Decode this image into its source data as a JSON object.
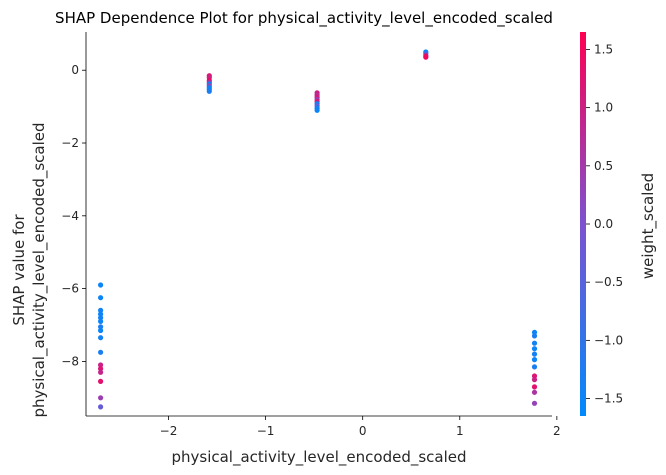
{
  "chart_data": {
    "type": "scatter",
    "title": "SHAP Dependence Plot for physical_activity_level_encoded_scaled",
    "xlabel": "physical_activity_level_encoded_scaled",
    "ylabel_lines": [
      "SHAP value for",
      "physical_activity_level_encoded_scaled"
    ],
    "xlim": [
      -2.85,
      1.95
    ],
    "ylim": [
      -9.5,
      1.05
    ],
    "x_ticks": [
      -2,
      -1,
      0,
      1,
      2
    ],
    "x_tick_labels": [
      "−2",
      "−1",
      "0",
      "1",
      "2"
    ],
    "y_ticks": [
      0,
      -2,
      -4,
      -6,
      -8
    ],
    "y_tick_labels": [
      "0",
      "−2",
      "−4",
      "−6",
      "−8"
    ],
    "colorbar": {
      "label": "weight_scaled",
      "range": [
        -1.65,
        1.65
      ],
      "ticks": [
        1.5,
        1.0,
        0.5,
        0.0,
        -0.5,
        -1.0,
        -1.5
      ],
      "tick_labels": [
        "1.5",
        "1.0",
        "0.5",
        "0.0",
        "−0.5",
        "−1.0",
        "−1.5"
      ],
      "colors": [
        "#008afb",
        "#7c52d0",
        "#ff0052"
      ]
    },
    "points": [
      {
        "x": -2.7,
        "y": -5.9,
        "c": -1.5
      },
      {
        "x": -2.7,
        "y": -6.25,
        "c": -1.5
      },
      {
        "x": -2.7,
        "y": -6.6,
        "c": -1.4
      },
      {
        "x": -2.7,
        "y": -6.7,
        "c": -1.5
      },
      {
        "x": -2.7,
        "y": -6.8,
        "c": -1.4
      },
      {
        "x": -2.7,
        "y": -6.9,
        "c": -1.5
      },
      {
        "x": -2.7,
        "y": -7.05,
        "c": -1.3
      },
      {
        "x": -2.7,
        "y": -7.15,
        "c": -1.5
      },
      {
        "x": -2.7,
        "y": -7.35,
        "c": -1.4
      },
      {
        "x": -2.7,
        "y": -7.75,
        "c": -1.3
      },
      {
        "x": -2.7,
        "y": -8.1,
        "c": 1.0
      },
      {
        "x": -2.7,
        "y": -8.2,
        "c": 1.2
      },
      {
        "x": -2.7,
        "y": -8.3,
        "c": 0.9
      },
      {
        "x": -2.7,
        "y": -8.55,
        "c": 1.3
      },
      {
        "x": -2.7,
        "y": -9.0,
        "c": 0.4
      },
      {
        "x": -2.7,
        "y": -9.25,
        "c": -0.3
      },
      {
        "x": -1.58,
        "y": -0.15,
        "c": 1.2
      },
      {
        "x": -1.58,
        "y": -0.2,
        "c": 1.0
      },
      {
        "x": -1.58,
        "y": -0.28,
        "c": 1.4
      },
      {
        "x": -1.58,
        "y": -0.33,
        "c": 0.8
      },
      {
        "x": -1.58,
        "y": -0.38,
        "c": -1.5
      },
      {
        "x": -1.58,
        "y": -0.43,
        "c": 0.3
      },
      {
        "x": -1.58,
        "y": -0.48,
        "c": -1.4
      },
      {
        "x": -1.58,
        "y": -0.53,
        "c": -1.5
      },
      {
        "x": -1.58,
        "y": -0.58,
        "c": -1.3
      },
      {
        "x": -0.47,
        "y": -0.62,
        "c": 1.0
      },
      {
        "x": -0.47,
        "y": -0.68,
        "c": 0.8
      },
      {
        "x": -0.47,
        "y": -0.74,
        "c": 1.1
      },
      {
        "x": -0.47,
        "y": -0.8,
        "c": 0.4
      },
      {
        "x": -0.47,
        "y": -0.86,
        "c": 1.2
      },
      {
        "x": -0.47,
        "y": -0.92,
        "c": -1.5
      },
      {
        "x": -0.47,
        "y": -0.98,
        "c": -0.4
      },
      {
        "x": -0.47,
        "y": -1.04,
        "c": -1.4
      },
      {
        "x": -0.47,
        "y": -1.1,
        "c": -1.5
      },
      {
        "x": 0.65,
        "y": 0.5,
        "c": -1.5
      },
      {
        "x": 0.65,
        "y": 0.45,
        "c": -0.8
      },
      {
        "x": 0.65,
        "y": 0.4,
        "c": 1.3
      },
      {
        "x": 0.65,
        "y": 0.36,
        "c": 1.5
      },
      {
        "x": 1.77,
        "y": -7.2,
        "c": -1.5
      },
      {
        "x": 1.77,
        "y": -7.3,
        "c": -1.3
      },
      {
        "x": 1.77,
        "y": -7.5,
        "c": -1.4
      },
      {
        "x": 1.77,
        "y": -7.65,
        "c": -1.5
      },
      {
        "x": 1.77,
        "y": -7.8,
        "c": -1.4
      },
      {
        "x": 1.77,
        "y": -7.95,
        "c": -1.5
      },
      {
        "x": 1.77,
        "y": -8.15,
        "c": -1.3
      },
      {
        "x": 1.77,
        "y": -8.4,
        "c": 1.2
      },
      {
        "x": 1.77,
        "y": -8.5,
        "c": 1.0
      },
      {
        "x": 1.77,
        "y": -8.7,
        "c": 1.3
      },
      {
        "x": 1.77,
        "y": -8.85,
        "c": 0.6
      },
      {
        "x": 1.77,
        "y": -9.15,
        "c": 0.3
      }
    ]
  }
}
